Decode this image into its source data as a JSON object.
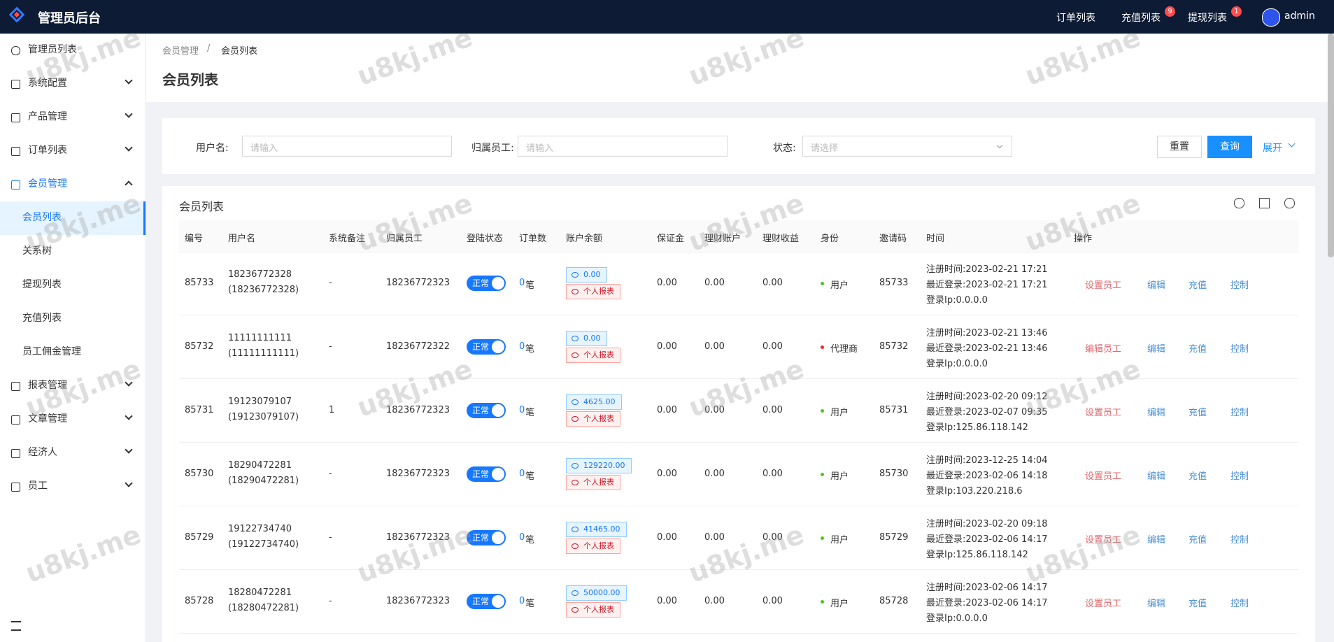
{
  "header": {
    "title": "管理员后台",
    "nav": [
      {
        "label": "订单列表"
      },
      {
        "label": "充值列表",
        "badge": "9"
      },
      {
        "label": "提现列表",
        "badge": "1"
      }
    ],
    "user": "admin"
  },
  "watermark": "u8kj.me",
  "sidebar": {
    "items": [
      {
        "label": "管理员列表"
      },
      {
        "label": "系统配置",
        "arrow": "down"
      },
      {
        "label": "产品管理",
        "arrow": "down"
      },
      {
        "label": "订单列表",
        "arrow": "down"
      },
      {
        "label": "会员管理",
        "arrow": "up",
        "open": true
      },
      {
        "label": "会员列表",
        "child": true,
        "active": true
      },
      {
        "label": "关系树",
        "child": true
      },
      {
        "label": "提现列表",
        "child": true
      },
      {
        "label": "充值列表",
        "child": true
      },
      {
        "label": "员工佣金管理",
        "child": true
      },
      {
        "label": "报表管理",
        "arrow": "down"
      },
      {
        "label": "文章管理",
        "arrow": "down"
      },
      {
        "label": "经济人",
        "arrow": "down"
      },
      {
        "label": "员工",
        "arrow": "down"
      }
    ]
  },
  "breadcrumb": [
    "会员管理",
    "/",
    "会员列表"
  ],
  "page_title": "会员列表",
  "filters": [
    {
      "label": "用户名:",
      "placeholder": "请输入"
    },
    {
      "label": "归属员工:",
      "placeholder": "请输入"
    },
    {
      "label": "状态:",
      "placeholder": "请选择"
    }
  ],
  "buttons": {
    "reset": "重置",
    "search": "查询",
    "expand": "展开"
  },
  "table": {
    "title": "会员列表",
    "columns": [
      "编号",
      "用户名",
      "系统备注",
      "归属员工",
      "登陆状态",
      "订单数",
      "账户余额",
      "保证金",
      "理财账户",
      "理财收益",
      "身份",
      "邀请码",
      "时间",
      "操作"
    ],
    "rows": [
      {
        "id": "85733",
        "username": "18236772328",
        "username2": "(18236772328)",
        "remark": "-",
        "staff": "18236772323",
        "status": "正常",
        "orders": "0",
        "unit": "笔",
        "balance": "0.00",
        "report": "个人报表",
        "deposit": "0.00",
        "finance": "0.00",
        "income": "0.00",
        "role": "用户",
        "role_color": "#52c41a",
        "invite": "85733",
        "times": [
          "注册时间:2023-02-21 17:21",
          "最近登录:2023-02-21 17:21",
          "登录Ip:0.0.0.0"
        ],
        "actions": [
          "设置员工",
          "编辑",
          "充值",
          "控制"
        ]
      },
      {
        "id": "85732",
        "username": "11111111111",
        "username2": "(11111111111)",
        "remark": "-",
        "staff": "18236772322",
        "status": "正常",
        "orders": "0",
        "unit": "笔",
        "balance": "0.00",
        "report": "个人报表",
        "deposit": "0.00",
        "finance": "0.00",
        "income": "0.00",
        "role": "代理商",
        "role_color": "#f5222d",
        "invite": "85732",
        "times": [
          "注册时间:2023-02-21 13:46",
          "最近登录:2023-02-21 13:46",
          "登录Ip:0.0.0.0"
        ],
        "actions": [
          "编辑员工",
          "编辑",
          "充值",
          "控制"
        ]
      },
      {
        "id": "85731",
        "username": "19123079107",
        "username2": "(19123079107)",
        "remark": "1",
        "staff": "18236772323",
        "status": "正常",
        "orders": "0",
        "unit": "笔",
        "balance": "4625.00",
        "report": "个人报表",
        "deposit": "0.00",
        "finance": "0.00",
        "income": "0.00",
        "role": "用户",
        "role_color": "#52c41a",
        "invite": "85731",
        "times": [
          "注册时间:2023-02-20 09:12",
          "最近登录:2023-02-07 09:35",
          "登录Ip:125.86.118.142"
        ],
        "actions": [
          "设置员工",
          "编辑",
          "充值",
          "控制"
        ]
      },
      {
        "id": "85730",
        "username": "18290472281",
        "username2": "(18290472281)",
        "remark": "-",
        "staff": "18236772323",
        "status": "正常",
        "orders": "0",
        "unit": "笔",
        "balance": "129220.00",
        "report": "个人报表",
        "deposit": "0.00",
        "finance": "0.00",
        "income": "0.00",
        "role": "用户",
        "role_color": "#52c41a",
        "invite": "85730",
        "times": [
          "注册时间:2023-12-25 14:04",
          "最近登录:2023-02-06 14:18",
          "登录Ip:103.220.218.6"
        ],
        "actions": [
          "设置员工",
          "编辑",
          "充值",
          "控制"
        ]
      },
      {
        "id": "85729",
        "username": "19122734740",
        "username2": "(19122734740)",
        "remark": "-",
        "staff": "18236772323",
        "status": "正常",
        "orders": "0",
        "unit": "笔",
        "balance": "41465.00",
        "report": "个人报表",
        "deposit": "0.00",
        "finance": "0.00",
        "income": "0.00",
        "role": "用户",
        "role_color": "#52c41a",
        "invite": "85729",
        "times": [
          "注册时间:2023-02-20 09:18",
          "最近登录:2023-02-06 14:17",
          "登录Ip:125.86.118.142"
        ],
        "actions": [
          "设置员工",
          "编辑",
          "充值",
          "控制"
        ]
      },
      {
        "id": "85728",
        "username": "18280472281",
        "username2": "(18280472281)",
        "remark": "-",
        "staff": "18236772323",
        "status": "正常",
        "orders": "0",
        "unit": "笔",
        "balance": "50000.00",
        "report": "个人报表",
        "deposit": "0.00",
        "finance": "0.00",
        "income": "0.00",
        "role": "用户",
        "role_color": "#52c41a",
        "invite": "85728",
        "times": [
          "注册时间:2023-02-06 14:17",
          "最近登录:2023-02-06 14:17",
          "登录Ip:0.0.0.0"
        ],
        "actions": [
          "设置员工",
          "编辑",
          "充值",
          "控制"
        ]
      }
    ]
  }
}
